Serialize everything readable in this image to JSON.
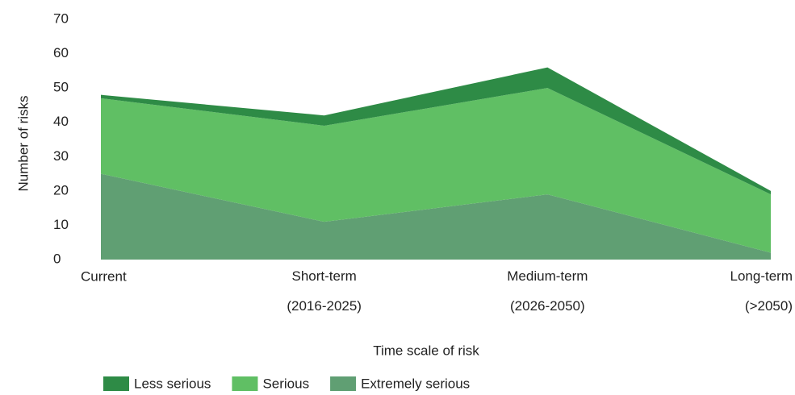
{
  "chart_data": {
    "type": "stacked_area",
    "x_label": "Time scale of risk",
    "y_label": "Number of risks",
    "categories": [
      "Current",
      "Short-term (2016-2025)",
      "Medium-term (2026-2050)",
      "Long-term (>2050)"
    ],
    "series": [
      {
        "name": "Extremely serious",
        "color": "#609f73",
        "values": [
          25,
          11,
          19,
          2
        ]
      },
      {
        "name": "Serious",
        "color": "#60bf64",
        "values": [
          22,
          28,
          31,
          17
        ]
      },
      {
        "name": "Less serious",
        "color": "#2e8b46",
        "values": [
          1,
          3,
          6,
          1
        ]
      }
    ],
    "legend_order": [
      2,
      1,
      0
    ],
    "ylim": [
      0,
      70
    ],
    "yticks": [
      0,
      10,
      20,
      30,
      40,
      50,
      60,
      70
    ],
    "grid": false
  }
}
